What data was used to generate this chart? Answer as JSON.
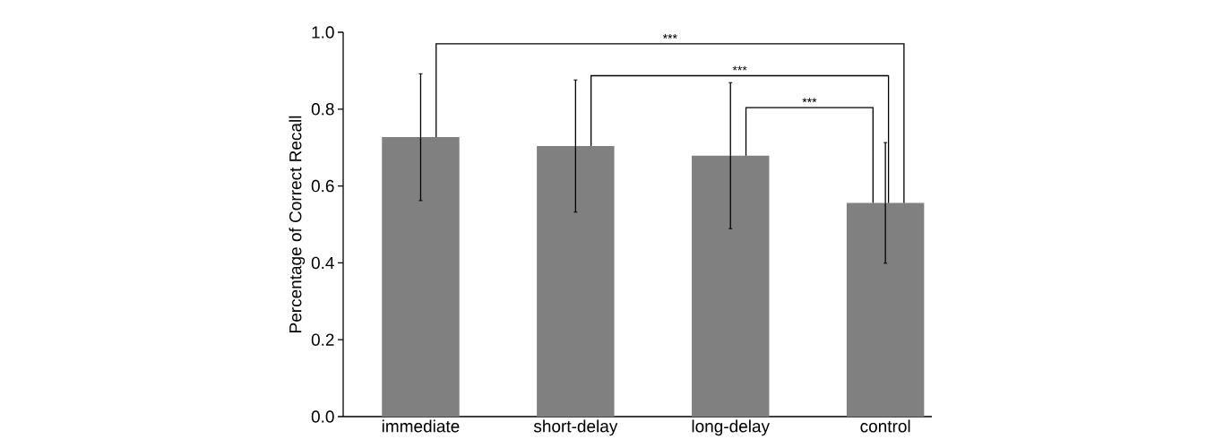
{
  "chart_data": {
    "type": "bar",
    "ylabel": "Percentage of Correct Recall",
    "categories": [
      "immediate",
      "short-delay",
      "long-delay",
      "control"
    ],
    "values": [
      0.727,
      0.704,
      0.679,
      0.556
    ],
    "errors": [
      0.165,
      0.172,
      0.19,
      0.157
    ],
    "color": "#808080",
    "ylim": [
      0,
      1
    ],
    "yticks": [
      {
        "value": 0,
        "label": "0.0"
      },
      {
        "value": 0.2,
        "label": "0.2"
      },
      {
        "value": 0.4,
        "label": "0.4"
      },
      {
        "value": 0.6,
        "label": "0.6"
      },
      {
        "value": 0.8,
        "label": "0.8"
      },
      {
        "value": 1,
        "label": "1.0"
      }
    ],
    "annotations": [
      "***",
      "***",
      "***"
    ]
  }
}
